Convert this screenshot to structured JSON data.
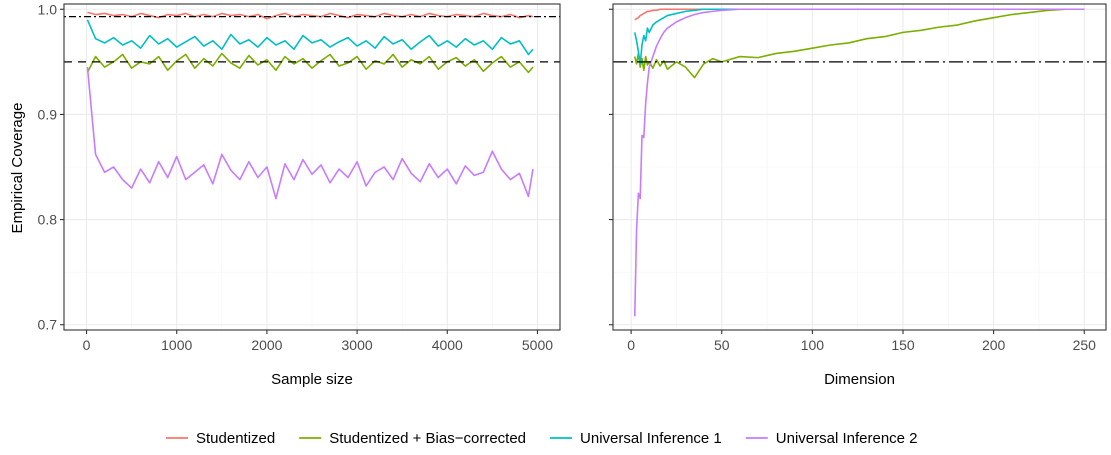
{
  "chart_data": {
    "type": "line",
    "ylabel": "Empirical Coverage",
    "ylim": [
      0.695,
      1.005
    ],
    "yticks": [
      0.7,
      0.8,
      0.9,
      1.0
    ],
    "ytick_labels": [
      "0.7",
      "0.8",
      "0.9",
      "1.0"
    ],
    "legend_position": "bottom",
    "grid": true,
    "series_meta": [
      {
        "name": "Studentized",
        "color": "#F8766D"
      },
      {
        "name": "Studentized + Bias−corrected",
        "color": "#7CAE00"
      },
      {
        "name": "Universal Inference 1",
        "color": "#00BFC4"
      },
      {
        "name": "Universal Inference 2",
        "color": "#C77CFF"
      }
    ],
    "panels": [
      {
        "xlabel": "Sample size",
        "xlim": [
          -250,
          5250
        ],
        "xticks": [
          0,
          1000,
          2000,
          3000,
          4000,
          5000
        ],
        "xtick_labels": [
          "0",
          "1000",
          "2000",
          "3000",
          "4000",
          "5000"
        ],
        "reference_lines": [
          {
            "y": 0.993,
            "style": "dotdash"
          },
          {
            "y": 0.95,
            "style": "dashed"
          }
        ],
        "x": [
          10,
          100,
          200,
          300,
          400,
          500,
          600,
          700,
          800,
          900,
          1000,
          1100,
          1200,
          1300,
          1400,
          1500,
          1600,
          1700,
          1800,
          1900,
          2000,
          2100,
          2200,
          2300,
          2400,
          2500,
          2600,
          2700,
          2800,
          2900,
          3000,
          3100,
          3200,
          3300,
          3400,
          3500,
          3600,
          3700,
          3800,
          3900,
          4000,
          4100,
          4200,
          4300,
          4400,
          4500,
          4600,
          4700,
          4800,
          4900,
          4950
        ],
        "series": [
          {
            "name": "Studentized",
            "values": [
              0.997,
              0.995,
              0.996,
              0.994,
              0.995,
              0.993,
              0.996,
              0.994,
              0.992,
              0.995,
              0.994,
              0.996,
              0.993,
              0.995,
              0.993,
              0.996,
              0.994,
              0.995,
              0.993,
              0.995,
              0.991,
              0.994,
              0.996,
              0.993,
              0.995,
              0.994,
              0.993,
              0.996,
              0.994,
              0.992,
              0.995,
              0.994,
              0.993,
              0.996,
              0.994,
              0.993,
              0.995,
              0.993,
              0.996,
              0.994,
              0.993,
              0.995,
              0.994,
              0.993,
              0.996,
              0.994,
              0.993,
              0.995,
              0.992,
              0.994,
              0.993
            ]
          },
          {
            "name": "Studentized + Bias−corrected",
            "values": [
              0.94,
              0.955,
              0.945,
              0.95,
              0.957,
              0.944,
              0.95,
              0.948,
              0.955,
              0.942,
              0.951,
              0.957,
              0.944,
              0.953,
              0.946,
              0.958,
              0.949,
              0.944,
              0.956,
              0.947,
              0.952,
              0.942,
              0.955,
              0.948,
              0.953,
              0.944,
              0.951,
              0.957,
              0.946,
              0.949,
              0.955,
              0.943,
              0.951,
              0.948,
              0.957,
              0.945,
              0.952,
              0.948,
              0.955,
              0.943,
              0.95,
              0.954,
              0.946,
              0.952,
              0.941,
              0.949,
              0.955,
              0.945,
              0.95,
              0.94,
              0.945
            ]
          },
          {
            "name": "Universal Inference 1",
            "values": [
              0.99,
              0.972,
              0.968,
              0.973,
              0.966,
              0.97,
              0.963,
              0.975,
              0.967,
              0.972,
              0.964,
              0.969,
              0.974,
              0.965,
              0.97,
              0.962,
              0.976,
              0.967,
              0.971,
              0.964,
              0.973,
              0.966,
              0.97,
              0.962,
              0.975,
              0.968,
              0.971,
              0.964,
              0.969,
              0.973,
              0.965,
              0.97,
              0.963,
              0.974,
              0.967,
              0.971,
              0.962,
              0.969,
              0.975,
              0.965,
              0.97,
              0.964,
              0.972,
              0.966,
              0.97,
              0.962,
              0.973,
              0.967,
              0.97,
              0.957,
              0.962
            ]
          },
          {
            "name": "Universal Inference 2",
            "values": [
              0.945,
              0.862,
              0.845,
              0.85,
              0.838,
              0.83,
              0.848,
              0.835,
              0.855,
              0.84,
              0.86,
              0.838,
              0.845,
              0.852,
              0.834,
              0.862,
              0.847,
              0.838,
              0.855,
              0.84,
              0.85,
              0.82,
              0.853,
              0.838,
              0.857,
              0.843,
              0.852,
              0.835,
              0.848,
              0.84,
              0.855,
              0.832,
              0.845,
              0.85,
              0.838,
              0.858,
              0.844,
              0.836,
              0.853,
              0.84,
              0.848,
              0.834,
              0.851,
              0.842,
              0.845,
              0.865,
              0.848,
              0.838,
              0.844,
              0.822,
              0.848
            ]
          }
        ]
      },
      {
        "xlabel": "Dimension",
        "xlim": [
          -10,
          262
        ],
        "xticks": [
          0,
          50,
          100,
          150,
          200,
          250
        ],
        "xtick_labels": [
          "0",
          "50",
          "100",
          "150",
          "200",
          "250"
        ],
        "reference_lines": [
          {
            "y": 0.95,
            "style": "longdash-dot"
          }
        ],
        "x": [
          2,
          3,
          4,
          5,
          6,
          7,
          8,
          9,
          10,
          12,
          14,
          16,
          18,
          20,
          25,
          30,
          35,
          40,
          45,
          50,
          60,
          70,
          80,
          90,
          100,
          110,
          120,
          130,
          140,
          150,
          160,
          170,
          180,
          190,
          200,
          210,
          220,
          230,
          240,
          250
        ],
        "series": [
          {
            "name": "Studentized",
            "values": [
              0.99,
              0.991,
              0.992,
              0.994,
              0.995,
              0.996,
              0.997,
              0.998,
              0.998,
              0.999,
              0.999,
              1.0,
              1.0,
              1.0,
              1.0,
              1.0,
              1.0,
              1.0,
              1.0,
              1.0,
              1.0,
              1.0,
              1.0,
              1.0,
              1.0,
              1.0,
              1.0,
              1.0,
              1.0,
              1.0,
              1.0,
              1.0,
              1.0,
              1.0,
              1.0,
              1.0,
              1.0,
              1.0,
              1.0,
              1.0
            ]
          },
          {
            "name": "Studentized + Bias−corrected",
            "values": [
              0.955,
              0.948,
              0.958,
              0.945,
              0.953,
              0.942,
              0.955,
              0.947,
              0.95,
              0.944,
              0.952,
              0.946,
              0.951,
              0.943,
              0.95,
              0.945,
              0.935,
              0.948,
              0.953,
              0.95,
              0.955,
              0.954,
              0.958,
              0.96,
              0.963,
              0.966,
              0.968,
              0.972,
              0.974,
              0.978,
              0.98,
              0.983,
              0.985,
              0.989,
              0.992,
              0.995,
              0.997,
              0.999,
              1.0,
              1.0
            ]
          },
          {
            "name": "Universal Inference 1",
            "values": [
              0.978,
              0.97,
              0.96,
              0.948,
              0.966,
              0.975,
              0.97,
              0.982,
              0.978,
              0.985,
              0.988,
              0.99,
              0.992,
              0.994,
              0.996,
              0.998,
              0.999,
              1.0,
              1.0,
              1.0,
              1.0,
              1.0,
              1.0,
              1.0,
              1.0,
              1.0,
              1.0,
              1.0,
              1.0,
              1.0,
              1.0,
              1.0,
              1.0,
              1.0,
              1.0,
              1.0,
              1.0,
              1.0,
              1.0,
              1.0
            ]
          },
          {
            "name": "Universal Inference 2",
            "values": [
              0.708,
              0.79,
              0.825,
              0.82,
              0.88,
              0.878,
              0.91,
              0.93,
              0.945,
              0.955,
              0.965,
              0.972,
              0.978,
              0.982,
              0.988,
              0.992,
              0.995,
              0.997,
              0.998,
              0.999,
              1.0,
              1.0,
              1.0,
              1.0,
              1.0,
              1.0,
              1.0,
              1.0,
              1.0,
              1.0,
              1.0,
              1.0,
              1.0,
              1.0,
              1.0,
              1.0,
              1.0,
              1.0,
              1.0,
              1.0
            ]
          }
        ]
      }
    ]
  }
}
